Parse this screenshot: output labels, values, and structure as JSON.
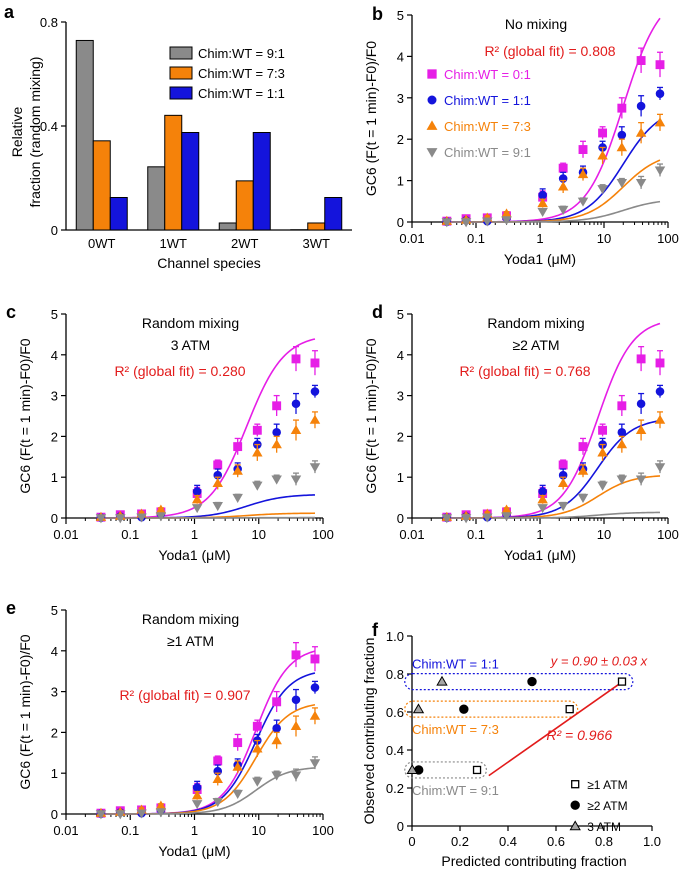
{
  "colors": {
    "magenta": "#e61ee6",
    "blue": "#1414dc",
    "orange": "#f5820a",
    "gray": "#8a8a8a",
    "red": "#e21b1b",
    "black": "#000000",
    "grayFill": "#a6a6a6"
  },
  "chart_data": [
    {
      "id": "a",
      "panel_label": "a",
      "type": "bar",
      "xlabel": "Channel species",
      "ylabel_line1": "Relative",
      "ylabel_line2": "fraction (random mixing)",
      "ylim": [
        0,
        0.8
      ],
      "yticks": [
        "0",
        "0.4",
        "0.8"
      ],
      "categories": [
        "0WT",
        "1WT",
        "2WT",
        "3WT"
      ],
      "series": [
        {
          "name": "Chim:WT = 9:1",
          "color": "#8a8a8a",
          "values": [
            0.729,
            0.243,
            0.027,
            0.001
          ]
        },
        {
          "name": "Chim:WT = 7:3",
          "color": "#f5820a",
          "values": [
            0.343,
            0.441,
            0.189,
            0.027
          ]
        },
        {
          "name": "Chim:WT = 1:1",
          "color": "#1414dc",
          "values": [
            0.125,
            0.375,
            0.375,
            0.125
          ]
        }
      ]
    },
    {
      "id": "b",
      "panel_label": "b",
      "type": "scatter",
      "title1": "No mixing",
      "title2": "",
      "fit_label": "R² (global fit) = 0.808",
      "xlabel": "Yoda1 (μM)",
      "ylabel": "GC6 (F(t = 1 min)-F0)/F0",
      "legend": [
        {
          "name": "Chim:WT = 0:1",
          "color": "#e61ee6",
          "marker": "square"
        },
        {
          "name": "Chim:WT = 1:1",
          "color": "#1414dc",
          "marker": "circle"
        },
        {
          "name": "Chim:WT = 7:3",
          "color": "#f5820a",
          "marker": "triangle"
        },
        {
          "name": "Chim:WT = 9:1",
          "color": "#8a8a8a",
          "marker": "triangle-down"
        }
      ],
      "fit_params": [
        {
          "color": "#e61ee6",
          "max": 5.6,
          "ec50": 20,
          "n": 1.5
        },
        {
          "color": "#1414dc",
          "max": 2.8,
          "ec50": 20,
          "n": 1.5
        },
        {
          "color": "#f5820a",
          "max": 1.7,
          "ec50": 20,
          "n": 1.5
        },
        {
          "color": "#8a8a8a",
          "max": 0.56,
          "ec50": 20,
          "n": 1.5
        }
      ]
    },
    {
      "id": "c",
      "panel_label": "c",
      "type": "scatter",
      "title1": "Random mixing",
      "title2": "3 ATM",
      "fit_label": "R² (global fit) = 0.280",
      "xlabel": "Yoda1 (μM)",
      "ylabel": "GC6 (F(t = 1 min)-F0)/F0",
      "legend": [],
      "fit_params": [
        {
          "color": "#e61ee6",
          "max": 4.5,
          "ec50": 6.5,
          "n": 1.5
        },
        {
          "color": "#1414dc",
          "max": 0.58,
          "ec50": 6.5,
          "n": 1.5
        },
        {
          "color": "#f5820a",
          "max": 0.12,
          "ec50": 6.5,
          "n": 1.5
        },
        {
          "color": "#8a8a8a",
          "max": 0.01,
          "ec50": 6.5,
          "n": 1.5
        }
      ]
    },
    {
      "id": "d",
      "panel_label": "d",
      "type": "scatter",
      "title1": "Random mixing",
      "title2": "≥2 ATM",
      "fit_label": "R² (global fit) = 0.768",
      "xlabel": "Yoda1 (μM)",
      "ylabel": "GC6 (F(t = 1 min)-F0)/F0",
      "legend": [],
      "fit_params": [
        {
          "color": "#e61ee6",
          "max": 4.9,
          "ec50": 8,
          "n": 1.6
        },
        {
          "color": "#1414dc",
          "max": 2.45,
          "ec50": 8,
          "n": 1.6
        },
        {
          "color": "#f5820a",
          "max": 1.06,
          "ec50": 8,
          "n": 1.6
        },
        {
          "color": "#8a8a8a",
          "max": 0.14,
          "ec50": 8,
          "n": 1.6
        }
      ]
    },
    {
      "id": "e",
      "panel_label": "e",
      "type": "scatter",
      "title1": "Random mixing",
      "title2": "≥1 ATM",
      "fit_label": "R² (global fit) = 0.907",
      "xlabel": "Yoda1 (μM)",
      "ylabel": "GC6 (F(t = 1 min)-F0)/F0",
      "legend": [],
      "fit_params": [
        {
          "color": "#e61ee6",
          "max": 4.1,
          "ec50": 9,
          "n": 1.7
        },
        {
          "color": "#1414dc",
          "max": 3.55,
          "ec50": 9,
          "n": 1.7
        },
        {
          "color": "#f5820a",
          "max": 2.75,
          "ec50": 9,
          "n": 1.7
        },
        {
          "color": "#8a8a8a",
          "max": 1.16,
          "ec50": 9,
          "n": 1.7
        }
      ]
    },
    {
      "id": "f",
      "panel_label": "f",
      "type": "scatter",
      "xlabel": "Predicted contributing fraction",
      "ylabel": "Observed contributing fraction",
      "xlim": [
        0,
        1.0
      ],
      "ylim": [
        0,
        1.0
      ],
      "ticks": [
        "0",
        "0.2",
        "0.4",
        "0.6",
        "0.8",
        "1.0"
      ],
      "groups": [
        {
          "label": "Chim:WT = 1:1",
          "color": "#1414dc",
          "observed": 0.76
        },
        {
          "label": "Chim:WT = 7:3",
          "color": "#f5820a",
          "observed": 0.615
        },
        {
          "label": "Chim:WT = 9:1",
          "color": "#8a8a8a",
          "observed": 0.295
        }
      ],
      "points": [
        {
          "group": 0,
          "marker": "square",
          "x": 0.875,
          "y": 0.76
        },
        {
          "group": 0,
          "marker": "circle",
          "x": 0.5,
          "y": 0.76
        },
        {
          "group": 0,
          "marker": "triangle",
          "x": 0.125,
          "y": 0.76
        },
        {
          "group": 1,
          "marker": "square",
          "x": 0.657,
          "y": 0.615
        },
        {
          "group": 1,
          "marker": "circle",
          "x": 0.216,
          "y": 0.615
        },
        {
          "group": 1,
          "marker": "triangle",
          "x": 0.027,
          "y": 0.615
        },
        {
          "group": 2,
          "marker": "square",
          "x": 0.271,
          "y": 0.295
        },
        {
          "group": 2,
          "marker": "circle",
          "x": 0.028,
          "y": 0.295
        },
        {
          "group": 2,
          "marker": "triangle",
          "x": 0.001,
          "y": 0.295
        }
      ],
      "fit_equation": "y = 0.90 ± 0.03 x",
      "fit_slope": 0.9,
      "fit_r2": "R² = 0.966",
      "legend": [
        {
          "marker": "square",
          "label": "≥1 ATM"
        },
        {
          "marker": "circle",
          "label": "≥2 ATM"
        },
        {
          "marker": "triangle",
          "label": "3 ATM"
        }
      ]
    }
  ],
  "yoda_data": {
    "x_ticks": [
      "0.01",
      "0.1",
      "1",
      "10",
      "100"
    ],
    "y_ticks": [
      "0",
      "1",
      "2",
      "3",
      "4",
      "5"
    ],
    "conc": [
      0.035,
      0.07,
      0.15,
      0.3,
      1.1,
      2.3,
      4.7,
      9.5,
      19,
      38,
      75
    ],
    "series": [
      {
        "name": "Chim:WT = 0:1",
        "color": "#e61ee6",
        "marker": "square",
        "y": [
          0.02,
          0.08,
          0.1,
          0.15,
          0.6,
          1.3,
          1.75,
          2.15,
          2.75,
          3.9,
          3.8
        ],
        "err": [
          0.05,
          0.05,
          0.05,
          0.06,
          0.15,
          0.12,
          0.2,
          0.15,
          0.25,
          0.3,
          0.3
        ]
      },
      {
        "name": "Chim:WT = 1:1",
        "color": "#1414dc",
        "marker": "circle",
        "y": [
          0.01,
          0.04,
          0.02,
          0.1,
          0.65,
          1.05,
          1.2,
          1.8,
          2.1,
          2.8,
          3.1
        ],
        "err": [
          0.05,
          0.05,
          0.05,
          0.05,
          0.15,
          0.15,
          0.15,
          0.15,
          0.2,
          0.25,
          0.15
        ]
      },
      {
        "name": "Chim:WT = 7:3",
        "color": "#f5820a",
        "marker": "triangle",
        "y": [
          0.02,
          0.05,
          0.1,
          0.2,
          0.45,
          0.85,
          1.15,
          1.6,
          1.8,
          2.15,
          2.4
        ],
        "err": [
          0.04,
          0.04,
          0.05,
          0.05,
          0.1,
          0.15,
          0.15,
          0.2,
          0.2,
          0.25,
          0.2
        ]
      },
      {
        "name": "Chim:WT = 9:1",
        "color": "#8a8a8a",
        "marker": "triangle-down",
        "y": [
          0.0,
          0.0,
          0.02,
          0.05,
          0.25,
          0.3,
          0.5,
          0.8,
          0.95,
          0.95,
          1.25
        ],
        "err": [
          0.03,
          0.03,
          0.03,
          0.04,
          0.06,
          0.08,
          0.08,
          0.1,
          0.1,
          0.15,
          0.15
        ]
      }
    ]
  }
}
